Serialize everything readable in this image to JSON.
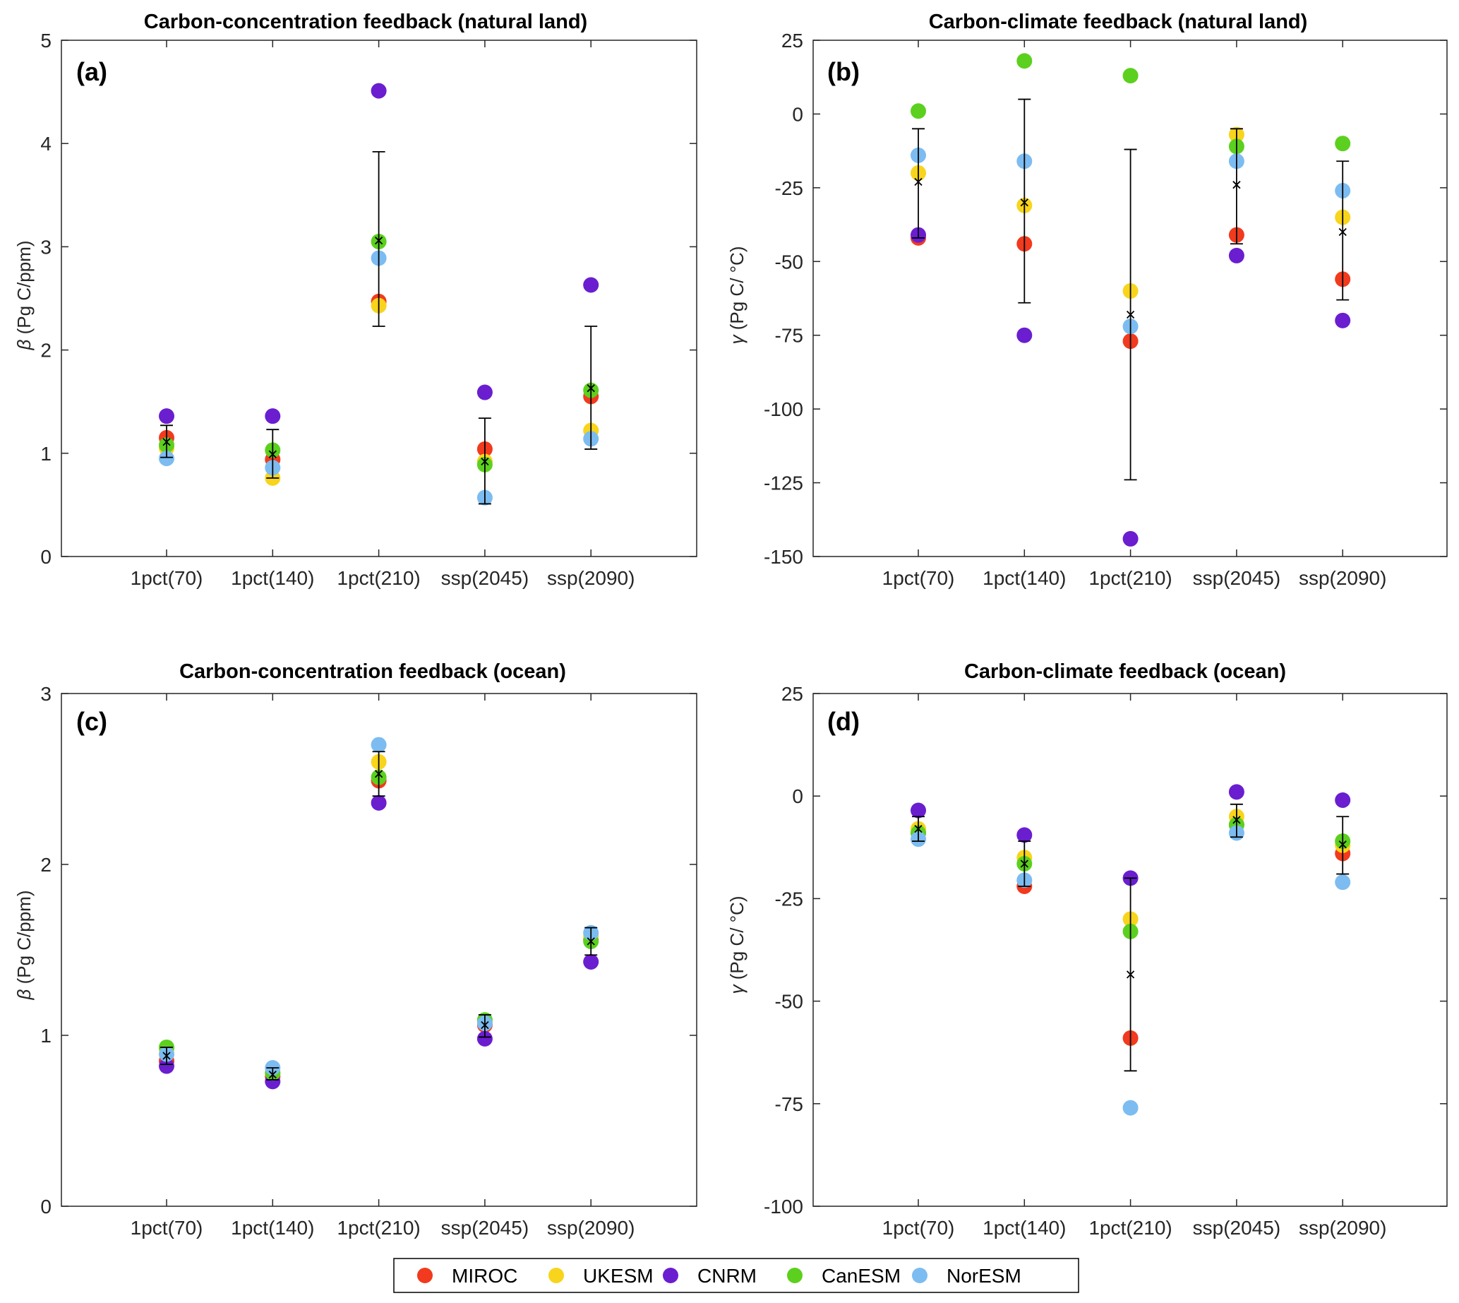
{
  "chart_data": [
    {
      "type": "scatter",
      "id": "a",
      "title": "Carbon-concentration feedback (natural land)",
      "panel_label": "(a)",
      "ylabel_symbol": "β",
      "ylabel_units": " (Pg C/ppm)",
      "ylim": [
        0,
        5
      ],
      "yticks": [
        0,
        1,
        2,
        3,
        4,
        5
      ],
      "ytick_labels": [
        "0",
        "1",
        "2",
        "3",
        "4",
        "5"
      ],
      "categories": [
        "1pct(70)",
        "1pct(140)",
        "1pct(210)",
        "ssp(2045)",
        "ssp(2090)"
      ],
      "series": [
        {
          "name": "MIROC",
          "values": [
            1.15,
            0.94,
            2.47,
            1.04,
            1.55
          ]
        },
        {
          "name": "UKESM",
          "values": [
            1.05,
            0.76,
            2.43,
            0.92,
            1.22
          ]
        },
        {
          "name": "CNRM",
          "values": [
            1.36,
            1.36,
            4.51,
            1.59,
            2.63
          ]
        },
        {
          "name": "CanESM",
          "values": [
            1.08,
            1.03,
            3.05,
            0.89,
            1.61
          ]
        },
        {
          "name": "NorESM",
          "values": [
            0.95,
            0.86,
            2.89,
            0.57,
            1.14
          ]
        }
      ],
      "mean": [
        1.11,
        0.99,
        3.06,
        0.92,
        1.63
      ],
      "err_low": [
        0.96,
        0.76,
        2.23,
        0.51,
        1.04
      ],
      "err_high": [
        1.27,
        1.23,
        3.92,
        1.34,
        2.23
      ]
    },
    {
      "type": "scatter",
      "id": "b",
      "title": "Carbon-climate feedback (natural land)",
      "panel_label": "(b)",
      "ylabel_symbol": "γ",
      "ylabel_units": " (Pg C/ °C)",
      "ylim": [
        -150,
        25
      ],
      "yticks": [
        -150,
        -125,
        -100,
        -75,
        -50,
        -25,
        0,
        25
      ],
      "ytick_labels": [
        "-150",
        "-125",
        "-100",
        "-75",
        "-50",
        "-25",
        "0",
        "25"
      ],
      "categories": [
        "1pct(70)",
        "1pct(140)",
        "1pct(210)",
        "ssp(2045)",
        "ssp(2090)"
      ],
      "series": [
        {
          "name": "MIROC",
          "values": [
            -42,
            -44,
            -77,
            -41,
            -56
          ]
        },
        {
          "name": "UKESM",
          "values": [
            -20,
            -31,
            -60,
            -7,
            -35
          ]
        },
        {
          "name": "CNRM",
          "values": [
            -41,
            -75,
            -144,
            -48,
            -70
          ]
        },
        {
          "name": "CanESM",
          "values": [
            1,
            18,
            13,
            -11,
            -10
          ]
        },
        {
          "name": "NorESM",
          "values": [
            -14,
            -16,
            -72,
            -16,
            -26
          ]
        }
      ],
      "mean": [
        -23,
        -30,
        -68,
        -24,
        -40
      ],
      "err_low": [
        -42,
        -64,
        -124,
        -44,
        -63
      ],
      "err_high": [
        -5,
        5,
        -12,
        -5,
        -16
      ]
    },
    {
      "type": "scatter",
      "id": "c",
      "title": "Carbon-concentration feedback (ocean)",
      "panel_label": "(c)",
      "ylabel_symbol": "β",
      "ylabel_units": " (Pg C/ppm)",
      "ylim": [
        0,
        3
      ],
      "yticks": [
        0,
        1,
        2,
        3
      ],
      "ytick_labels": [
        "0",
        "1",
        "2",
        "3"
      ],
      "categories": [
        "1pct(70)",
        "1pct(140)",
        "1pct(210)",
        "ssp(2045)",
        "ssp(2090)"
      ],
      "series": [
        {
          "name": "MIROC",
          "values": [
            0.85,
            0.76,
            2.49,
            1.06,
            1.56
          ]
        },
        {
          "name": "UKESM",
          "values": [
            0.92,
            0.78,
            2.6,
            1.08,
            1.58
          ]
        },
        {
          "name": "CNRM",
          "values": [
            0.82,
            0.73,
            2.36,
            0.98,
            1.43
          ]
        },
        {
          "name": "CanESM",
          "values": [
            0.93,
            0.78,
            2.51,
            1.09,
            1.55
          ]
        },
        {
          "name": "NorESM",
          "values": [
            0.89,
            0.81,
            2.7,
            1.07,
            1.6
          ]
        }
      ],
      "mean": [
        0.88,
        0.77,
        2.53,
        1.06,
        1.55
      ],
      "err_low": [
        0.83,
        0.74,
        2.4,
        0.99,
        1.47
      ],
      "err_high": [
        0.93,
        0.81,
        2.66,
        1.12,
        1.63
      ]
    },
    {
      "type": "scatter",
      "id": "d",
      "title": "Carbon-climate feedback (ocean)",
      "panel_label": "(d)",
      "ylabel_symbol": "γ",
      "ylabel_units": " (Pg C/ °C)",
      "ylim": [
        -100,
        25
      ],
      "yticks": [
        -100,
        -75,
        -50,
        -25,
        0,
        25
      ],
      "ytick_labels": [
        "-100",
        "-75",
        "-50",
        "-25",
        "0",
        "25"
      ],
      "categories": [
        "1pct(70)",
        "1pct(140)",
        "1pct(210)",
        "ssp(2045)",
        "ssp(2090)"
      ],
      "series": [
        {
          "name": "MIROC",
          "values": [
            -9,
            -22,
            -59,
            -7,
            -14
          ]
        },
        {
          "name": "UKESM",
          "values": [
            -8,
            -15,
            -30,
            -5,
            -12
          ]
        },
        {
          "name": "CNRM",
          "values": [
            -3.5,
            -9.5,
            -20,
            1,
            -1
          ]
        },
        {
          "name": "CanESM",
          "values": [
            -9,
            -16.5,
            -33,
            -7,
            -11
          ]
        },
        {
          "name": "NorESM",
          "values": [
            -10.5,
            -20.5,
            -76,
            -9,
            -21
          ]
        }
      ],
      "mean": [
        -8,
        -16.5,
        -43.5,
        -5.8,
        -11.8
      ],
      "err_low": [
        -11,
        -22,
        -67,
        -10,
        -19
      ],
      "err_high": [
        -5,
        -11,
        -20,
        -2,
        -5
      ]
    }
  ],
  "colors": {
    "MIROC": "#f13a1e",
    "UKESM": "#f8d41c",
    "CNRM": "#6a1ecf",
    "CanESM": "#5cd01e",
    "NorESM": "#7cbcf1",
    "mean_marker": "#000000"
  },
  "legend": {
    "entries": [
      "MIROC",
      "UKESM",
      "CNRM",
      "CanESM",
      "NorESM"
    ]
  }
}
